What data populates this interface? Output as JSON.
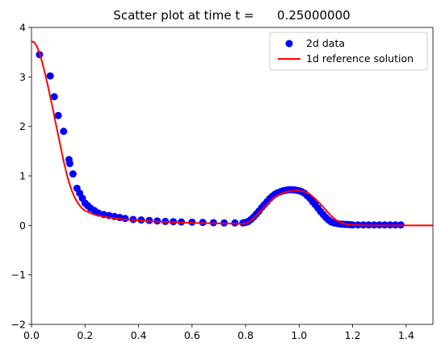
{
  "chart_data": {
    "type": "scatter",
    "title": "Scatter plot at time t =      0.25000000",
    "xlim": [
      0.0,
      1.5
    ],
    "ylim": [
      -2,
      4
    ],
    "xticks": [
      0.0,
      0.2,
      0.4,
      0.6,
      0.8,
      1.0,
      1.2,
      1.4
    ],
    "xtick_labels": [
      "0.0",
      "0.2",
      "0.4",
      "0.6",
      "0.8",
      "1.0",
      "1.2",
      "1.4"
    ],
    "yticks": [
      -2,
      -1,
      0,
      1,
      2,
      3,
      4
    ],
    "ytick_labels": [
      "−2",
      "−1",
      "0",
      "1",
      "2",
      "3",
      "4"
    ],
    "grid": false,
    "legend_position": "top-right",
    "series": [
      {
        "name": "2d data",
        "kind": "scatter",
        "color": "#0000ff",
        "x": [
          0.03,
          0.07,
          0.085,
          0.1,
          0.12,
          0.14,
          0.143,
          0.155,
          0.17,
          0.18,
          0.19,
          0.2,
          0.21,
          0.22,
          0.235,
          0.25,
          0.27,
          0.29,
          0.31,
          0.33,
          0.35,
          0.38,
          0.41,
          0.44,
          0.47,
          0.5,
          0.53,
          0.56,
          0.6,
          0.64,
          0.68,
          0.72,
          0.76,
          0.79,
          0.8,
          0.81,
          0.82,
          0.83,
          0.84,
          0.85,
          0.86,
          0.87,
          0.88,
          0.89,
          0.9,
          0.91,
          0.92,
          0.93,
          0.94,
          0.95,
          0.96,
          0.97,
          0.98,
          0.99,
          1.0,
          1.01,
          1.02,
          1.03,
          1.04,
          1.05,
          1.06,
          1.07,
          1.08,
          1.09,
          1.1,
          1.11,
          1.12,
          1.13,
          1.14,
          1.15,
          1.16,
          1.17,
          1.18,
          1.19,
          1.2,
          1.22,
          1.24,
          1.26,
          1.28,
          1.3,
          1.32,
          1.34,
          1.36,
          1.38
        ],
        "y": [
          3.45,
          3.02,
          2.6,
          2.22,
          1.9,
          1.33,
          1.25,
          1.04,
          0.75,
          0.65,
          0.55,
          0.45,
          0.4,
          0.35,
          0.3,
          0.25,
          0.22,
          0.2,
          0.18,
          0.16,
          0.14,
          0.12,
          0.11,
          0.1,
          0.09,
          0.08,
          0.075,
          0.07,
          0.065,
          0.06,
          0.055,
          0.05,
          0.05,
          0.05,
          0.06,
          0.08,
          0.12,
          0.17,
          0.23,
          0.29,
          0.36,
          0.42,
          0.48,
          0.54,
          0.59,
          0.63,
          0.66,
          0.68,
          0.7,
          0.71,
          0.72,
          0.72,
          0.72,
          0.71,
          0.7,
          0.68,
          0.65,
          0.6,
          0.55,
          0.48,
          0.42,
          0.35,
          0.28,
          0.22,
          0.16,
          0.11,
          0.07,
          0.05,
          0.04,
          0.03,
          0.025,
          0.02,
          0.02,
          0.015,
          0.01,
          0.01,
          0.01,
          0.01,
          0.01,
          0.01,
          0.01,
          0.01,
          0.01,
          0.01
        ]
      },
      {
        "name": "1d reference solution",
        "kind": "line",
        "color": "#ff0000",
        "x": [
          0.0,
          0.01,
          0.02,
          0.03,
          0.04,
          0.05,
          0.06,
          0.07,
          0.08,
          0.09,
          0.1,
          0.11,
          0.12,
          0.13,
          0.14,
          0.15,
          0.16,
          0.17,
          0.18,
          0.19,
          0.2,
          0.22,
          0.24,
          0.26,
          0.28,
          0.3,
          0.35,
          0.4,
          0.45,
          0.5,
          0.55,
          0.6,
          0.65,
          0.7,
          0.75,
          0.79,
          0.8,
          0.82,
          0.84,
          0.86,
          0.88,
          0.9,
          0.92,
          0.94,
          0.96,
          0.98,
          1.0,
          1.02,
          1.04,
          1.06,
          1.08,
          1.1,
          1.12,
          1.14,
          1.16,
          1.18,
          1.2,
          1.25,
          1.3,
          1.35,
          1.4,
          1.45,
          1.5
        ],
        "y": [
          3.72,
          3.7,
          3.62,
          3.48,
          3.3,
          3.08,
          2.85,
          2.6,
          2.35,
          2.08,
          1.82,
          1.56,
          1.3,
          1.07,
          0.87,
          0.71,
          0.58,
          0.48,
          0.4,
          0.34,
          0.3,
          0.25,
          0.21,
          0.19,
          0.17,
          0.15,
          0.12,
          0.1,
          0.08,
          0.07,
          0.06,
          0.05,
          0.045,
          0.04,
          0.035,
          0.03,
          0.04,
          0.1,
          0.2,
          0.31,
          0.42,
          0.53,
          0.61,
          0.66,
          0.69,
          0.7,
          0.7,
          0.68,
          0.63,
          0.54,
          0.43,
          0.31,
          0.19,
          0.1,
          0.05,
          0.02,
          0.01,
          0.0,
          0.0,
          0.0,
          0.0,
          0.0,
          0.0
        ]
      }
    ]
  }
}
